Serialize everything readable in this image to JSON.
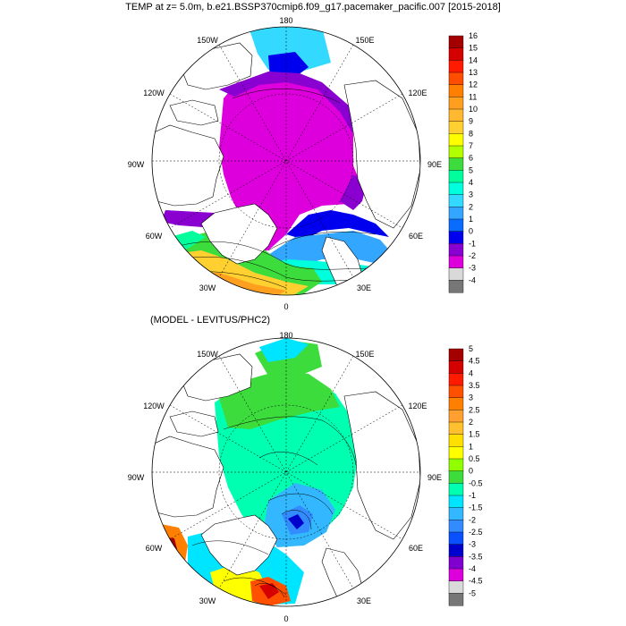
{
  "title": "TEMP at z=   5.0m, b.e21.BSSP370cmip6.f09_g17.pacemaker_pacific.007 [2015-2018]",
  "panels": [
    {
      "id": "top",
      "subtitle": "",
      "lon_labels": {
        "top": "180",
        "upper_left": "150W",
        "upper_right": "150E",
        "left_high": "120W",
        "right_high": "120E",
        "left_mid": "90W",
        "right_mid": "90E",
        "left_low": "60W",
        "right_low": "60E",
        "lower_left": "30W",
        "lower_right": "30E",
        "bottom": "0"
      },
      "colorbar": {
        "labels": [
          "16",
          "15",
          "14",
          "13",
          "12",
          "11",
          "10",
          "9",
          "8",
          "7",
          "6",
          "5",
          "4",
          "3",
          "2",
          "1",
          "0",
          "-1",
          "-2",
          "-3",
          "-4"
        ],
        "colors": [
          "#a50000",
          "#d50000",
          "#ff1a00",
          "#ff4d00",
          "#ff8000",
          "#ff9f20",
          "#ffb830",
          "#ffd030",
          "#ffff00",
          "#b2ff00",
          "#3cdc3c",
          "#00ff9c",
          "#00ffdc",
          "#33d9ff",
          "#33a6ff",
          "#0a6cff",
          "#0000ee",
          "#8a00d0",
          "#dd00dd",
          "#d9d9d9",
          "#777777"
        ]
      }
    },
    {
      "id": "bottom",
      "subtitle": "(MODEL - LEVITUS/PHC2)",
      "lon_labels": {
        "top": "180",
        "upper_left": "150W",
        "upper_right": "150E",
        "left_high": "120W",
        "right_high": "120E",
        "left_mid": "90W",
        "right_mid": "90E",
        "left_low": "60W",
        "right_low": "60E",
        "lower_left": "30W",
        "lower_right": "30E",
        "bottom": "0"
      },
      "colorbar": {
        "labels": [
          "5",
          "4.5",
          "4",
          "3.5",
          "3",
          "2.5",
          "2",
          "1.5",
          "1",
          "0.5",
          "0",
          "-0.5",
          "-1",
          "-1.5",
          "-2",
          "-2.5",
          "-3",
          "-3.5",
          "-4",
          "-4.5",
          "-5"
        ],
        "colors": [
          "#a50000",
          "#d50000",
          "#ff1a00",
          "#ff5000",
          "#ff8000",
          "#ffa030",
          "#ffc030",
          "#ffe000",
          "#ffff00",
          "#90ff00",
          "#3cdc3c",
          "#00ffb0",
          "#00e5ff",
          "#33b8ff",
          "#338cff",
          "#0a50ff",
          "#0000cc",
          "#8000d0",
          "#dd00dd",
          "#d9d9d9",
          "#777777"
        ]
      }
    }
  ]
}
